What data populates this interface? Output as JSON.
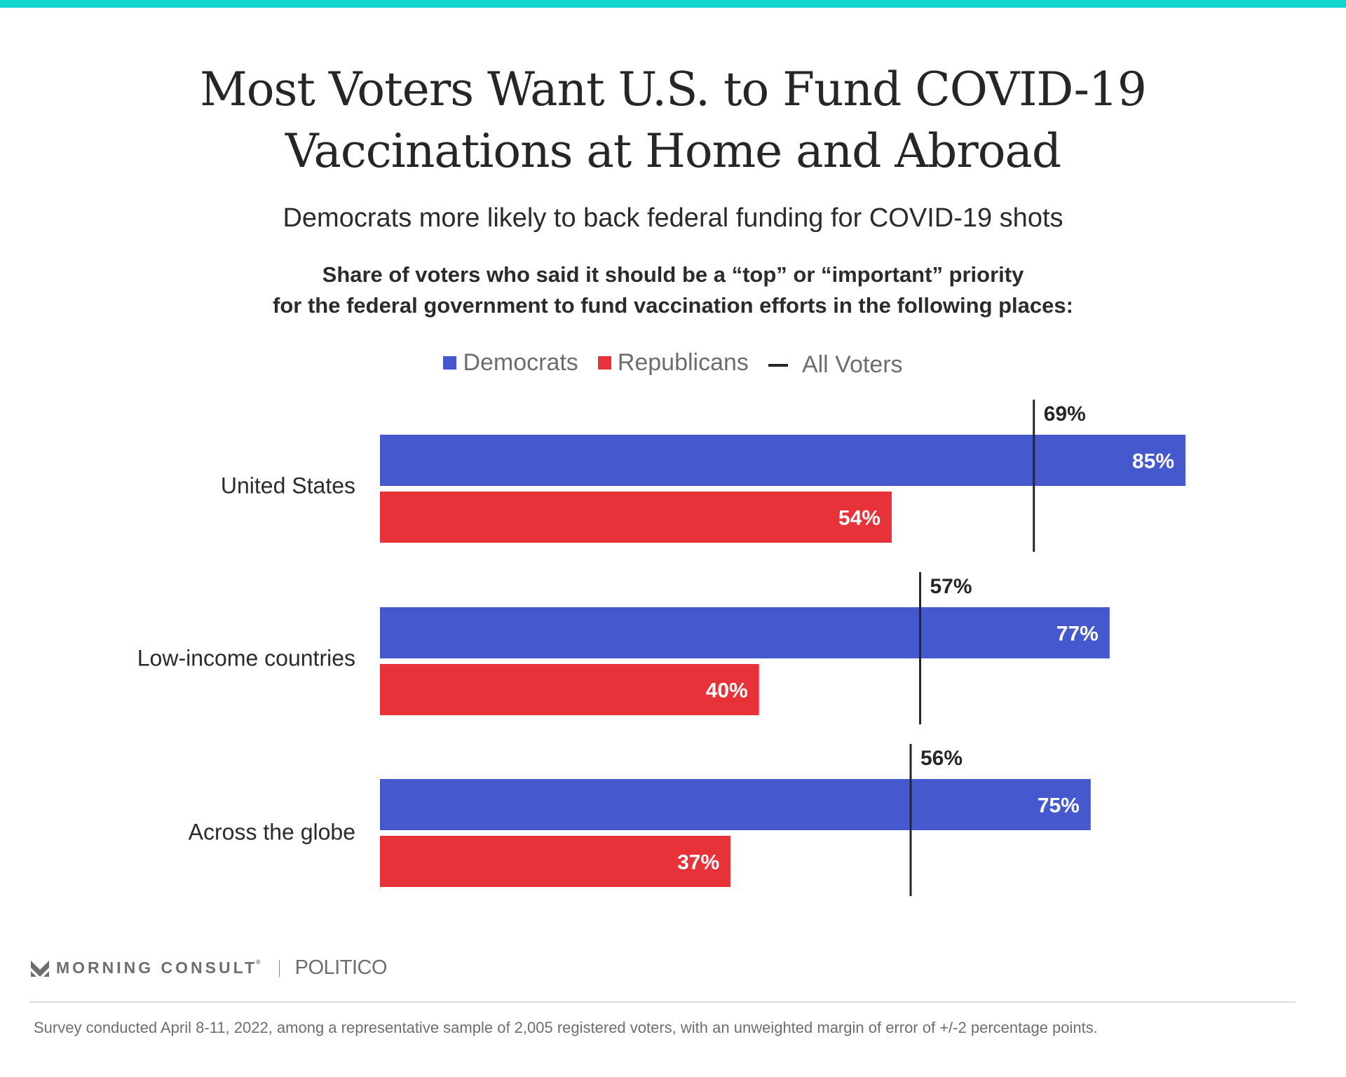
{
  "header": {
    "title_line1": "Most Voters Want U.S. to Fund COVID-19",
    "title_line2": "Vaccinations at Home and Abroad",
    "subtitle": "Democrats more likely to back federal funding for COVID-19 shots",
    "description_line1": "Share of voters who said it should be a “top” or “important” priority",
    "description_line2": "for the federal government to fund vaccination efforts in the following places:"
  },
  "colors": {
    "accent_bar": "#12d6cb",
    "democrats": "#4658ce",
    "republicans": "#e8323a",
    "all_voters": "#262626"
  },
  "chart_data": {
    "type": "bar",
    "orientation": "horizontal",
    "title": "Most Voters Want U.S. to Fund COVID-19 Vaccinations at Home and Abroad",
    "subtitle": "Democrats more likely to back federal funding for COVID-19 shots",
    "xlabel": "",
    "ylabel": "",
    "xlim": [
      0,
      100
    ],
    "grid": false,
    "legend_position": "top-center",
    "categories": [
      "United States",
      "Low-income countries",
      "Across the globe"
    ],
    "series": [
      {
        "name": "Democrats",
        "type": "bar",
        "values": [
          85,
          77,
          75
        ],
        "labels": [
          "85%",
          "77%",
          "75%"
        ]
      },
      {
        "name": "Republicans",
        "type": "bar",
        "values": [
          54,
          40,
          37
        ],
        "labels": [
          "54%",
          "40%",
          "37%"
        ]
      },
      {
        "name": "All Voters",
        "type": "reference-line",
        "values": [
          69,
          57,
          56
        ],
        "labels": [
          "69%",
          "57%",
          "56%"
        ]
      }
    ]
  },
  "legend": [
    {
      "label": "Democrats",
      "marker": "square"
    },
    {
      "label": "Republicans",
      "marker": "square"
    },
    {
      "label": "All Voters",
      "marker": "dash"
    }
  ],
  "footer": {
    "brand": "MORNING CONSULT",
    "brand_mark": "®",
    "partner": "POLITICO",
    "logo_icon": "morning-consult-chevron-icon",
    "note": "Survey conducted April 8-11, 2022, among a representative sample of 2,005 registered voters, with an unweighted margin of error of +/-2 percentage points."
  }
}
